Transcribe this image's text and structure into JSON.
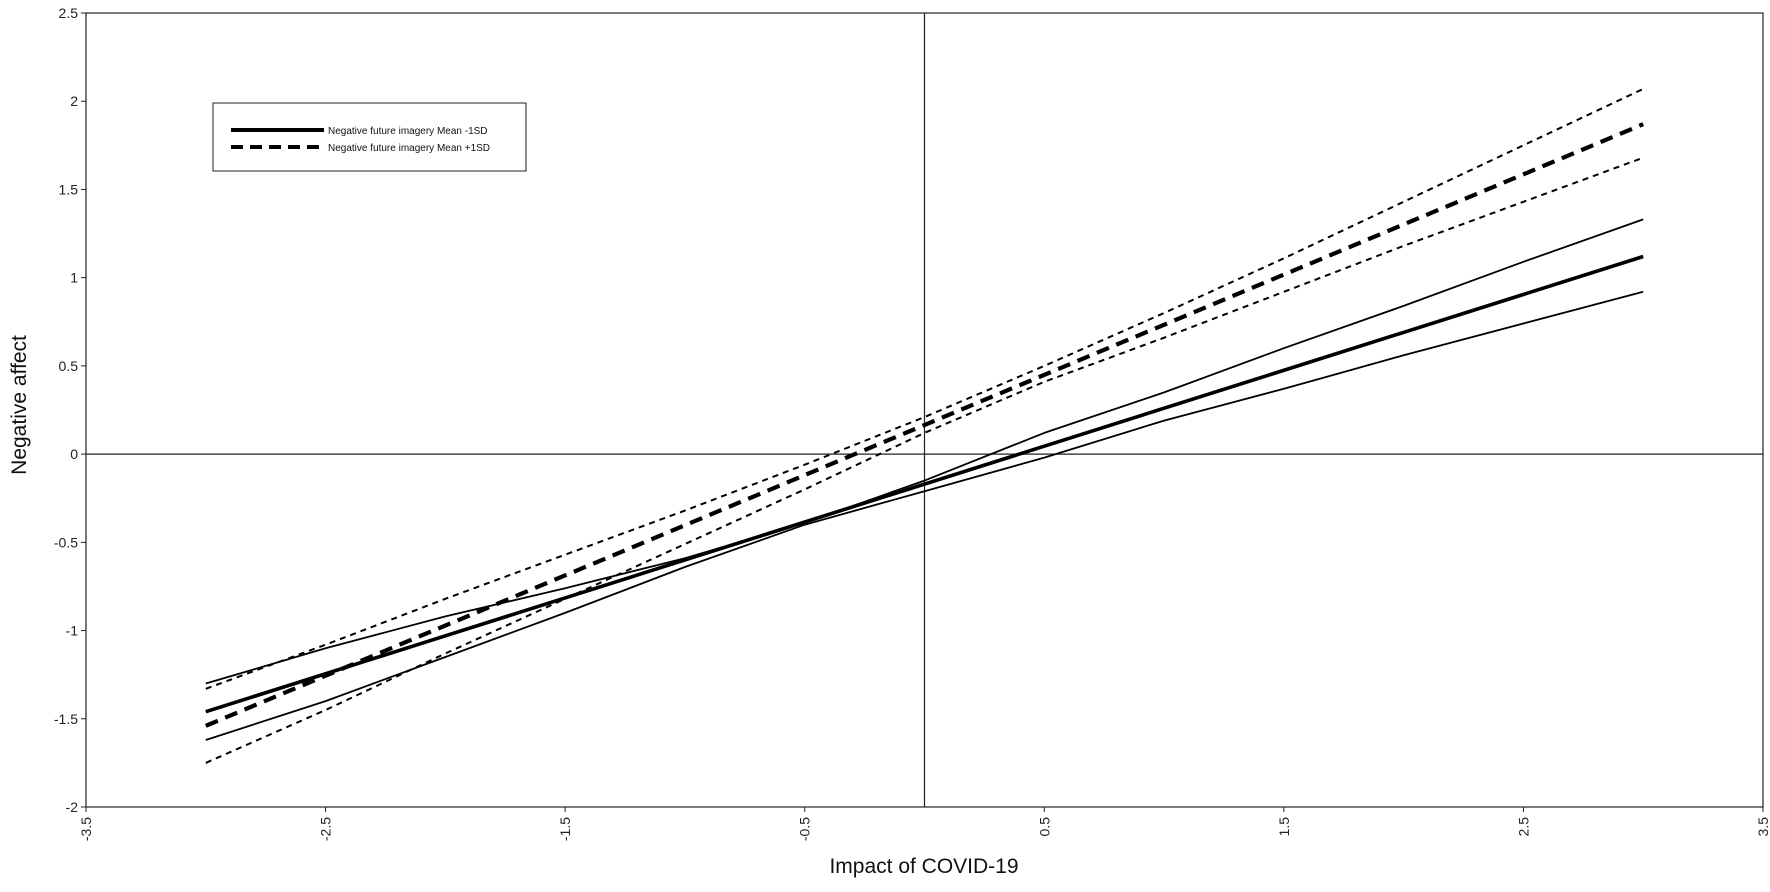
{
  "chart_data": {
    "type": "line",
    "title": "",
    "xlabel": "Impact of COVID-19",
    "ylabel": "Negative affect",
    "xlim": [
      -3.5,
      3.5
    ],
    "ylim": [
      -2,
      2.5
    ],
    "x_ticks": [
      "-3.5",
      "-2.5",
      "-1.5",
      "-0.5",
      "0.5",
      "1.5",
      "2.5",
      "3.5"
    ],
    "y_ticks": [
      "2.5",
      "2",
      "1.5",
      "1",
      "0.5",
      "0",
      "-0.5",
      "-1",
      "-1.5",
      "-2"
    ],
    "reference_lines": {
      "x": 0,
      "y": 0
    },
    "grid": false,
    "legend_position": "top-left",
    "series": [
      {
        "name": "Negative future imagery Mean -1SD",
        "style": "solid",
        "x": [
          -3,
          3
        ],
        "y": [
          -1.46,
          1.12
        ]
      },
      {
        "name": "",
        "style": "solid-thin",
        "x": [
          -3,
          -2.5,
          -2,
          -1.5,
          -1,
          -0.5,
          0,
          0.5,
          1,
          1.5,
          2,
          2.5,
          3
        ],
        "y": [
          -1.3,
          -1.1,
          -0.92,
          -0.76,
          -0.59,
          -0.39,
          -0.15,
          0.12,
          0.35,
          0.6,
          0.84,
          1.09,
          1.33
        ]
      },
      {
        "name": "",
        "style": "solid-thin",
        "x": [
          -3,
          -2.5,
          -2,
          -1.5,
          -1,
          -0.5,
          0,
          0.5,
          1,
          1.5,
          2,
          2.5,
          3
        ],
        "y": [
          -1.62,
          -1.4,
          -1.15,
          -0.9,
          -0.64,
          -0.4,
          -0.21,
          -0.02,
          0.19,
          0.37,
          0.56,
          0.74,
          0.92
        ]
      },
      {
        "name": "Negative future imagery Mean +1SD",
        "style": "dashed",
        "x": [
          -3,
          3
        ],
        "y": [
          -1.54,
          1.87
        ]
      },
      {
        "name": "",
        "style": "dashed-thin",
        "x": [
          -3,
          -2.5,
          -2,
          -1.5,
          -1,
          -0.5,
          0,
          0.5,
          1,
          1.5,
          2,
          2.5,
          3
        ],
        "y": [
          -1.33,
          -1.08,
          -0.82,
          -0.57,
          -0.32,
          -0.06,
          0.21,
          0.5,
          0.8,
          1.11,
          1.43,
          1.75,
          2.07
        ]
      },
      {
        "name": "",
        "style": "dashed-thin",
        "x": [
          -3,
          -2.5,
          -2,
          -1.5,
          -1,
          -0.5,
          0,
          0.5,
          1,
          1.5,
          2,
          2.5,
          3
        ],
        "y": [
          -1.75,
          -1.45,
          -1.13,
          -0.82,
          -0.51,
          -0.2,
          0.12,
          0.41,
          0.66,
          0.92,
          1.18,
          1.43,
          1.68
        ]
      }
    ]
  }
}
